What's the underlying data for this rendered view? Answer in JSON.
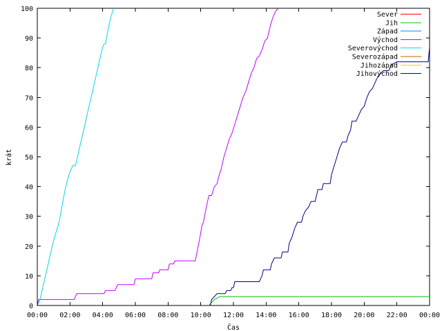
{
  "chart_data": {
    "type": "line",
    "xlabel": "Čas",
    "ylabel": "krát",
    "xlim": [
      "00:00",
      "24:00"
    ],
    "ylim": [
      0,
      100
    ],
    "grid": false,
    "legend": "top-right",
    "x_ticks": [
      "00:00",
      "02:00",
      "04:00",
      "06:00",
      "08:00",
      "10:00",
      "12:00",
      "14:00",
      "16:00",
      "18:00",
      "20:00",
      "22:00",
      "00:00"
    ],
    "y_ticks": [
      0,
      10,
      20,
      30,
      40,
      50,
      60,
      70,
      80,
      90,
      100
    ],
    "series": [
      {
        "name": "Sever",
        "color": "#ff0000",
        "points": []
      },
      {
        "name": "Jih",
        "color": "#00c000",
        "points": [
          [
            "10:30",
            0
          ],
          [
            "10:40",
            1
          ],
          [
            "10:50",
            2
          ],
          [
            "11:10",
            3
          ],
          [
            "24:00",
            3
          ]
        ]
      },
      {
        "name": "Západ",
        "color": "#0080ff",
        "points": []
      },
      {
        "name": "Východ",
        "color": "#c000ff",
        "points": [
          [
            "00:00",
            0
          ],
          [
            "00:05",
            2
          ],
          [
            "02:15",
            2
          ],
          [
            "02:25",
            4
          ],
          [
            "04:05",
            4
          ],
          [
            "04:10",
            5
          ],
          [
            "04:45",
            5
          ],
          [
            "04:55",
            7
          ],
          [
            "05:55",
            7
          ],
          [
            "06:00",
            9
          ],
          [
            "07:00",
            9
          ],
          [
            "07:05",
            11
          ],
          [
            "07:25",
            11
          ],
          [
            "07:30",
            12
          ],
          [
            "08:00",
            12
          ],
          [
            "08:05",
            14
          ],
          [
            "08:20",
            14
          ],
          [
            "08:25",
            15
          ],
          [
            "09:40",
            15
          ],
          [
            "09:55",
            22
          ],
          [
            "10:05",
            27
          ],
          [
            "10:10",
            28
          ],
          [
            "10:20",
            33
          ],
          [
            "10:30",
            37
          ],
          [
            "10:40",
            37
          ],
          [
            "10:50",
            40
          ],
          [
            "11:00",
            41
          ],
          [
            "11:05",
            43
          ],
          [
            "11:15",
            46
          ],
          [
            "11:25",
            50
          ],
          [
            "11:35",
            53
          ],
          [
            "11:45",
            56
          ],
          [
            "11:55",
            58
          ],
          [
            "12:05",
            61
          ],
          [
            "12:15",
            64
          ],
          [
            "12:25",
            67
          ],
          [
            "12:35",
            70
          ],
          [
            "12:45",
            72
          ],
          [
            "12:55",
            75
          ],
          [
            "13:05",
            78
          ],
          [
            "13:15",
            80
          ],
          [
            "13:25",
            83
          ],
          [
            "13:35",
            84
          ],
          [
            "13:45",
            86
          ],
          [
            "13:55",
            89
          ],
          [
            "14:05",
            90
          ],
          [
            "14:15",
            94
          ],
          [
            "14:25",
            97
          ],
          [
            "14:35",
            99
          ],
          [
            "14:45",
            100
          ]
        ]
      },
      {
        "name": "Severovýchod",
        "color": "#00d8e8",
        "points": [
          [
            "00:00",
            0
          ],
          [
            "00:10",
            2
          ],
          [
            "00:20",
            6
          ],
          [
            "00:30",
            10
          ],
          [
            "00:40",
            14
          ],
          [
            "00:50",
            18
          ],
          [
            "01:00",
            22
          ],
          [
            "01:10",
            25
          ],
          [
            "01:20",
            28
          ],
          [
            "01:30",
            33
          ],
          [
            "01:40",
            38
          ],
          [
            "01:50",
            42
          ],
          [
            "02:00",
            45
          ],
          [
            "02:10",
            47
          ],
          [
            "02:20",
            47
          ],
          [
            "02:30",
            51
          ],
          [
            "02:40",
            55
          ],
          [
            "02:50",
            59
          ],
          [
            "03:00",
            63
          ],
          [
            "03:10",
            67
          ],
          [
            "03:20",
            71
          ],
          [
            "03:30",
            75
          ],
          [
            "03:40",
            79
          ],
          [
            "03:50",
            83
          ],
          [
            "04:00",
            87
          ],
          [
            "04:05",
            88
          ],
          [
            "04:10",
            88
          ],
          [
            "04:20",
            93
          ],
          [
            "04:30",
            97
          ],
          [
            "04:40",
            100
          ]
        ]
      },
      {
        "name": "Severozápad",
        "color": "#c06000",
        "points": []
      },
      {
        "name": "Jihozápad",
        "color": "#ffd000",
        "points": []
      },
      {
        "name": "Jihovýchod",
        "color": "#000080",
        "points": [
          [
            "10:35",
            0
          ],
          [
            "10:40",
            2
          ],
          [
            "10:50",
            3
          ],
          [
            "11:00",
            4
          ],
          [
            "11:30",
            4
          ],
          [
            "11:35",
            5
          ],
          [
            "11:50",
            5
          ],
          [
            "11:55",
            6
          ],
          [
            "12:00",
            6
          ],
          [
            "12:05",
            8
          ],
          [
            "13:35",
            8
          ],
          [
            "13:45",
            10
          ],
          [
            "13:50",
            12
          ],
          [
            "14:15",
            12
          ],
          [
            "14:20",
            14
          ],
          [
            "14:30",
            16
          ],
          [
            "14:55",
            16
          ],
          [
            "15:00",
            18
          ],
          [
            "15:20",
            18
          ],
          [
            "15:25",
            21
          ],
          [
            "15:35",
            23
          ],
          [
            "15:45",
            26
          ],
          [
            "15:55",
            28
          ],
          [
            "16:10",
            28
          ],
          [
            "16:15",
            30
          ],
          [
            "16:25",
            32
          ],
          [
            "16:35",
            33
          ],
          [
            "16:45",
            35
          ],
          [
            "17:00",
            35
          ],
          [
            "17:05",
            37
          ],
          [
            "17:10",
            39
          ],
          [
            "17:25",
            39
          ],
          [
            "17:30",
            41
          ],
          [
            "17:55",
            41
          ],
          [
            "18:00",
            44
          ],
          [
            "18:10",
            47
          ],
          [
            "18:20",
            50
          ],
          [
            "18:30",
            53
          ],
          [
            "18:40",
            55
          ],
          [
            "18:55",
            55
          ],
          [
            "19:00",
            57
          ],
          [
            "19:10",
            59
          ],
          [
            "19:15",
            62
          ],
          [
            "19:30",
            62
          ],
          [
            "19:40",
            64
          ],
          [
            "19:50",
            66
          ],
          [
            "20:00",
            67
          ],
          [
            "20:10",
            70
          ],
          [
            "20:20",
            72
          ],
          [
            "20:30",
            73
          ],
          [
            "20:40",
            75
          ],
          [
            "20:50",
            77
          ],
          [
            "21:00",
            78
          ],
          [
            "21:10",
            79
          ],
          [
            "21:30",
            79
          ],
          [
            "21:40",
            81
          ],
          [
            "22:00",
            82
          ],
          [
            "23:55",
            82
          ],
          [
            "24:00",
            87
          ]
        ]
      }
    ]
  }
}
